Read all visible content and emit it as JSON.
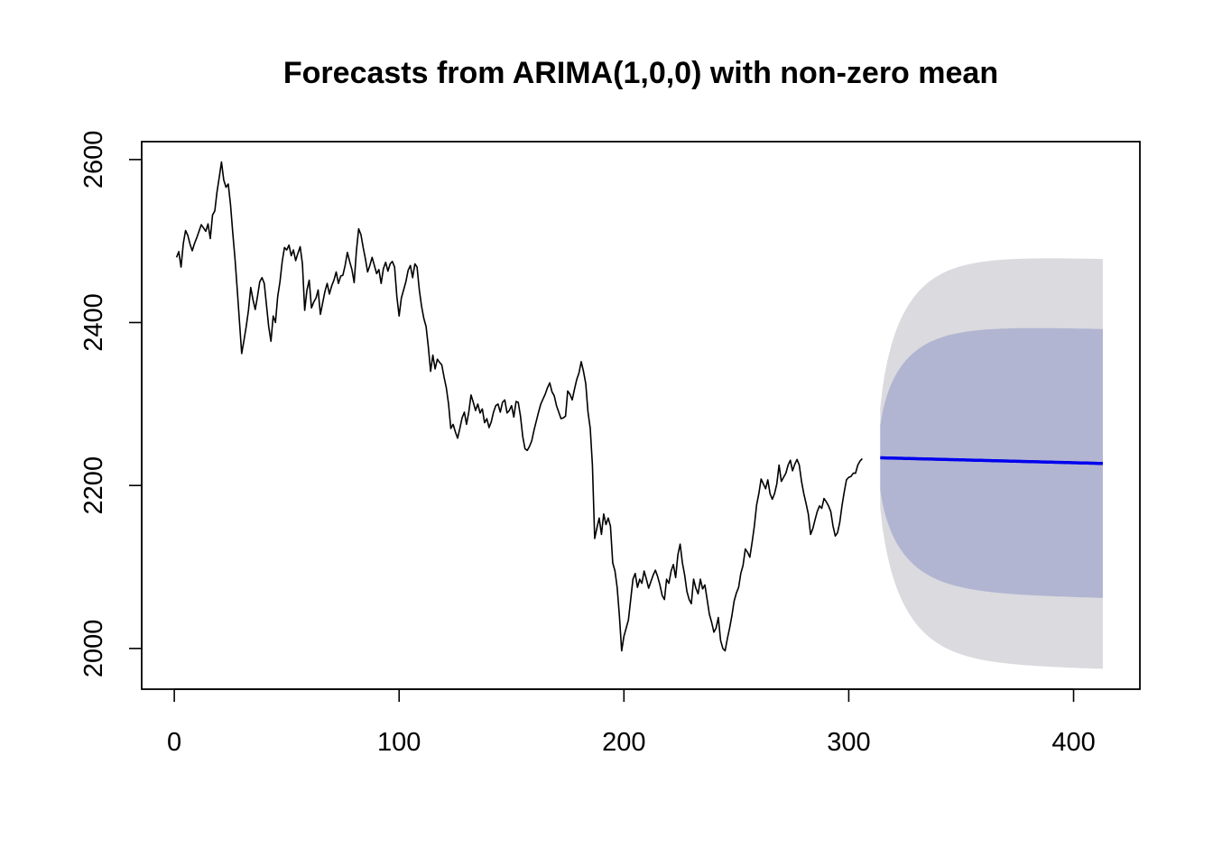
{
  "chart_data": {
    "type": "line",
    "title": "Forecasts from ARIMA(1,0,0) with non-zero mean",
    "xlabel": "",
    "ylabel": "",
    "xlim": [
      -14.5,
      429.5
    ],
    "ylim": [
      1950,
      2622
    ],
    "x_ticks": [
      0,
      100,
      200,
      300,
      400
    ],
    "y_ticks": [
      2000,
      2200,
      2400,
      2600
    ],
    "x_tick_labels": [
      "0",
      "100",
      "200",
      "300",
      "400"
    ],
    "y_tick_labels": [
      "2000",
      "2200",
      "2400",
      "2600"
    ],
    "grid": false,
    "legend": "none",
    "colors": {
      "observed": "#000000",
      "forecast_mean": "#0000ee",
      "pi80": "#b1b5d1",
      "pi95": "#dadadf"
    },
    "observed": {
      "x0": 1,
      "values": [
        2480,
        2487,
        2468,
        2497,
        2513,
        2507,
        2496,
        2488,
        2497,
        2504,
        2512,
        2520,
        2516,
        2512,
        2521,
        2503,
        2532,
        2537,
        2560,
        2578,
        2597,
        2575,
        2566,
        2570,
        2545,
        2510,
        2478,
        2440,
        2400,
        2362,
        2378,
        2395,
        2415,
        2443,
        2428,
        2416,
        2432,
        2450,
        2455,
        2448,
        2421,
        2395,
        2377,
        2408,
        2400,
        2432,
        2450,
        2475,
        2492,
        2489,
        2495,
        2482,
        2489,
        2476,
        2485,
        2493,
        2472,
        2415,
        2440,
        2452,
        2418,
        2425,
        2430,
        2440,
        2410,
        2424,
        2438,
        2448,
        2435,
        2445,
        2452,
        2462,
        2448,
        2457,
        2458,
        2470,
        2486,
        2475,
        2465,
        2449,
        2488,
        2515,
        2508,
        2492,
        2478,
        2462,
        2470,
        2480,
        2470,
        2460,
        2465,
        2448,
        2466,
        2474,
        2463,
        2472,
        2475,
        2468,
        2432,
        2408,
        2430,
        2440,
        2450,
        2464,
        2470,
        2455,
        2472,
        2468,
        2440,
        2420,
        2405,
        2395,
        2370,
        2340,
        2360,
        2343,
        2355,
        2351,
        2348,
        2333,
        2320,
        2300,
        2270,
        2275,
        2266,
        2258,
        2270,
        2283,
        2290,
        2275,
        2290,
        2311,
        2302,
        2292,
        2300,
        2289,
        2294,
        2277,
        2282,
        2271,
        2278,
        2290,
        2298,
        2300,
        2290,
        2302,
        2305,
        2289,
        2292,
        2298,
        2284,
        2303,
        2302,
        2285,
        2260,
        2245,
        2243,
        2248,
        2255,
        2268,
        2279,
        2290,
        2300,
        2306,
        2312,
        2320,
        2326,
        2315,
        2310,
        2298,
        2290,
        2282,
        2283,
        2285,
        2316,
        2312,
        2305,
        2318,
        2330,
        2338,
        2352,
        2340,
        2325,
        2290,
        2270,
        2225,
        2135,
        2148,
        2160,
        2140,
        2165,
        2152,
        2160,
        2150,
        2105,
        2095,
        2075,
        2040,
        1997,
        2015,
        2025,
        2035,
        2060,
        2085,
        2092,
        2075,
        2085,
        2080,
        2095,
        2085,
        2074,
        2082,
        2090,
        2096,
        2088,
        2078,
        2065,
        2060,
        2085,
        2080,
        2095,
        2103,
        2087,
        2115,
        2128,
        2105,
        2090,
        2070,
        2060,
        2055,
        2085,
        2074,
        2067,
        2085,
        2073,
        2078,
        2060,
        2042,
        2032,
        2020,
        2025,
        2038,
        2010,
        2000,
        1997,
        2012,
        2025,
        2040,
        2058,
        2068,
        2075,
        2092,
        2102,
        2122,
        2118,
        2112,
        2130,
        2150,
        2176,
        2190,
        2208,
        2202,
        2196,
        2207,
        2190,
        2183,
        2190,
        2202,
        2225,
        2205,
        2210,
        2215,
        2225,
        2231,
        2218,
        2226,
        2232,
        2225,
        2205,
        2190,
        2178,
        2165,
        2140,
        2147,
        2158,
        2168,
        2175,
        2172,
        2184,
        2180,
        2175,
        2168,
        2150,
        2138,
        2142,
        2155,
        2175,
        2192,
        2207,
        2210,
        2211,
        2215,
        2215,
        2225,
        2230,
        2233
      ]
    },
    "forecast": {
      "x0": 314,
      "x1": 413,
      "mean_start": 2234,
      "mean_end": 2227,
      "hi80_end": 2392,
      "lo80_end": 2062,
      "hi95_end": 2478,
      "lo95_end": 1975
    }
  }
}
